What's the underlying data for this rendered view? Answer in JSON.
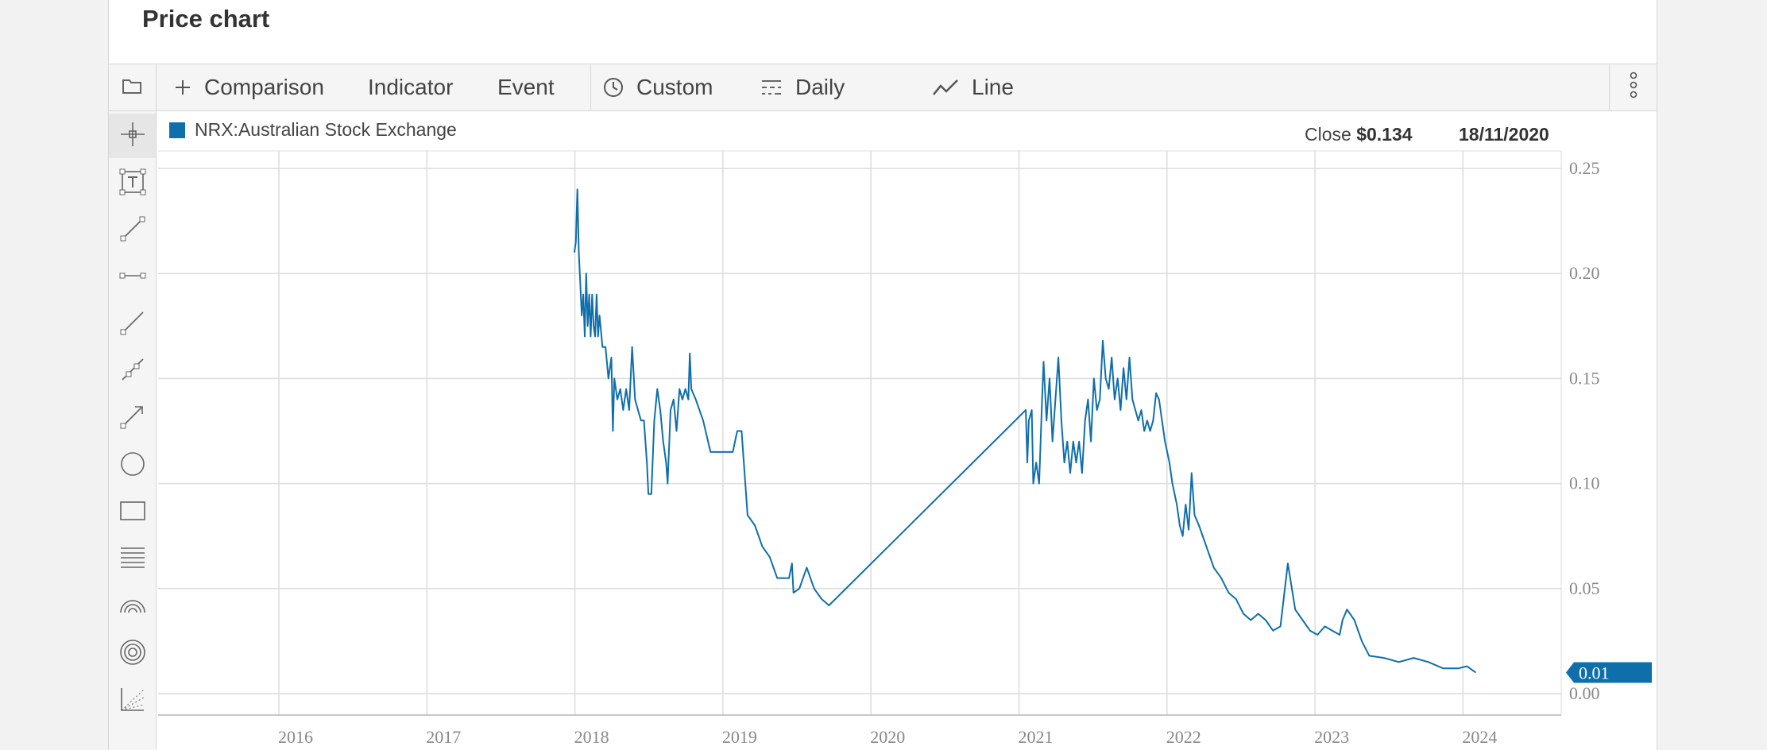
{
  "page": {
    "title": "Price chart"
  },
  "toolbar": {
    "comparison_label": "Comparison",
    "indicator_label": "Indicator",
    "event_label": "Event",
    "custom_label": "Custom",
    "daily_label": "Daily",
    "line_label": "Line"
  },
  "sidebar": {
    "tools": [
      "crosshair-icon",
      "text-box-icon",
      "line-segment-icon",
      "horizontal-segment-icon",
      "ray-icon",
      "channel-icon",
      "arrow-icon",
      "circle-icon",
      "rectangle-icon",
      "fibonacci-lines-icon",
      "fibonacci-arcs-icon",
      "fibonacci-circles-icon",
      "scatter-fan-icon"
    ]
  },
  "legend": {
    "series_name": "NRX:Australian Stock Exchange",
    "color": "#0f6fab"
  },
  "readout": {
    "close_label": "Close",
    "close_value": "$0.134",
    "date": "18/11/2020"
  },
  "chart_data": {
    "type": "line",
    "series": [
      {
        "name": "NRX:Australian Stock Exchange",
        "color": "#0f6fab",
        "points": [
          [
            2017.83,
            0.21
          ],
          [
            2017.84,
            0.215
          ],
          [
            2017.85,
            0.24
          ],
          [
            2017.86,
            0.21
          ],
          [
            2017.87,
            0.195
          ],
          [
            2017.88,
            0.18
          ],
          [
            2017.89,
            0.19
          ],
          [
            2017.9,
            0.17
          ],
          [
            2017.91,
            0.2
          ],
          [
            2017.92,
            0.175
          ],
          [
            2017.93,
            0.19
          ],
          [
            2017.94,
            0.17
          ],
          [
            2017.95,
            0.19
          ],
          [
            2017.96,
            0.175
          ],
          [
            2017.97,
            0.17
          ],
          [
            2017.98,
            0.19
          ],
          [
            2017.99,
            0.17
          ],
          [
            2018.0,
            0.18
          ],
          [
            2018.02,
            0.165
          ],
          [
            2018.04,
            0.165
          ],
          [
            2018.06,
            0.15
          ],
          [
            2018.08,
            0.16
          ],
          [
            2018.09,
            0.125
          ],
          [
            2018.1,
            0.15
          ],
          [
            2018.12,
            0.14
          ],
          [
            2018.14,
            0.145
          ],
          [
            2018.16,
            0.135
          ],
          [
            2018.18,
            0.145
          ],
          [
            2018.2,
            0.135
          ],
          [
            2018.22,
            0.165
          ],
          [
            2018.24,
            0.14
          ],
          [
            2018.26,
            0.135
          ],
          [
            2018.28,
            0.13
          ],
          [
            2018.3,
            0.13
          ],
          [
            2018.32,
            0.11
          ],
          [
            2018.33,
            0.095
          ],
          [
            2018.35,
            0.095
          ],
          [
            2018.37,
            0.13
          ],
          [
            2018.39,
            0.145
          ],
          [
            2018.41,
            0.135
          ],
          [
            2018.43,
            0.12
          ],
          [
            2018.45,
            0.11
          ],
          [
            2018.46,
            0.1
          ],
          [
            2018.48,
            0.135
          ],
          [
            2018.5,
            0.14
          ],
          [
            2018.52,
            0.125
          ],
          [
            2018.54,
            0.145
          ],
          [
            2018.56,
            0.14
          ],
          [
            2018.58,
            0.145
          ],
          [
            2018.6,
            0.14
          ],
          [
            2018.61,
            0.162
          ],
          [
            2018.62,
            0.145
          ],
          [
            2018.65,
            0.14
          ],
          [
            2018.7,
            0.13
          ],
          [
            2018.75,
            0.115
          ],
          [
            2018.85,
            0.115
          ],
          [
            2018.9,
            0.115
          ],
          [
            2018.93,
            0.125
          ],
          [
            2018.96,
            0.125
          ],
          [
            2019.0,
            0.085
          ],
          [
            2019.05,
            0.08
          ],
          [
            2019.1,
            0.07
          ],
          [
            2019.15,
            0.065
          ],
          [
            2019.2,
            0.055
          ],
          [
            2019.28,
            0.055
          ],
          [
            2019.3,
            0.062
          ],
          [
            2019.31,
            0.048
          ],
          [
            2019.35,
            0.05
          ],
          [
            2019.4,
            0.06
          ],
          [
            2019.45,
            0.05
          ],
          [
            2019.5,
            0.045
          ],
          [
            2019.55,
            0.042
          ],
          [
            2020.88,
            0.135
          ],
          [
            2020.89,
            0.11
          ],
          [
            2020.9,
            0.13
          ],
          [
            2020.92,
            0.135
          ],
          [
            2020.93,
            0.1
          ],
          [
            2020.95,
            0.11
          ],
          [
            2020.97,
            0.1
          ],
          [
            2020.99,
            0.14
          ],
          [
            2021.0,
            0.158
          ],
          [
            2021.02,
            0.13
          ],
          [
            2021.04,
            0.15
          ],
          [
            2021.06,
            0.12
          ],
          [
            2021.08,
            0.14
          ],
          [
            2021.1,
            0.16
          ],
          [
            2021.12,
            0.13
          ],
          [
            2021.14,
            0.11
          ],
          [
            2021.16,
            0.12
          ],
          [
            2021.18,
            0.105
          ],
          [
            2021.2,
            0.12
          ],
          [
            2021.22,
            0.11
          ],
          [
            2021.24,
            0.12
          ],
          [
            2021.26,
            0.105
          ],
          [
            2021.28,
            0.13
          ],
          [
            2021.3,
            0.14
          ],
          [
            2021.32,
            0.12
          ],
          [
            2021.34,
            0.15
          ],
          [
            2021.36,
            0.135
          ],
          [
            2021.38,
            0.14
          ],
          [
            2021.4,
            0.168
          ],
          [
            2021.42,
            0.15
          ],
          [
            2021.44,
            0.145
          ],
          [
            2021.46,
            0.16
          ],
          [
            2021.48,
            0.14
          ],
          [
            2021.5,
            0.15
          ],
          [
            2021.52,
            0.135
          ],
          [
            2021.54,
            0.155
          ],
          [
            2021.56,
            0.14
          ],
          [
            2021.58,
            0.16
          ],
          [
            2021.6,
            0.14
          ],
          [
            2021.62,
            0.135
          ],
          [
            2021.64,
            0.13
          ],
          [
            2021.66,
            0.135
          ],
          [
            2021.68,
            0.125
          ],
          [
            2021.7,
            0.13
          ],
          [
            2021.72,
            0.125
          ],
          [
            2021.74,
            0.13
          ],
          [
            2021.76,
            0.143
          ],
          [
            2021.78,
            0.14
          ],
          [
            2021.8,
            0.13
          ],
          [
            2021.82,
            0.12
          ],
          [
            2021.85,
            0.11
          ],
          [
            2021.87,
            0.1
          ],
          [
            2021.9,
            0.09
          ],
          [
            2021.92,
            0.08
          ],
          [
            2021.94,
            0.075
          ],
          [
            2021.96,
            0.09
          ],
          [
            2021.98,
            0.078
          ],
          [
            2022.0,
            0.105
          ],
          [
            2022.02,
            0.085
          ],
          [
            2022.05,
            0.08
          ],
          [
            2022.1,
            0.07
          ],
          [
            2022.15,
            0.06
          ],
          [
            2022.2,
            0.055
          ],
          [
            2022.25,
            0.048
          ],
          [
            2022.3,
            0.045
          ],
          [
            2022.35,
            0.038
          ],
          [
            2022.4,
            0.035
          ],
          [
            2022.45,
            0.038
          ],
          [
            2022.5,
            0.035
          ],
          [
            2022.55,
            0.03
          ],
          [
            2022.6,
            0.032
          ],
          [
            2022.65,
            0.062
          ],
          [
            2022.7,
            0.04
          ],
          [
            2022.75,
            0.035
          ],
          [
            2022.8,
            0.03
          ],
          [
            2022.85,
            0.028
          ],
          [
            2022.9,
            0.032
          ],
          [
            2022.95,
            0.03
          ],
          [
            2023.0,
            0.028
          ],
          [
            2023.02,
            0.035
          ],
          [
            2023.05,
            0.04
          ],
          [
            2023.1,
            0.035
          ],
          [
            2023.15,
            0.025
          ],
          [
            2023.2,
            0.018
          ],
          [
            2023.3,
            0.017
          ],
          [
            2023.4,
            0.015
          ],
          [
            2023.5,
            0.017
          ],
          [
            2023.6,
            0.015
          ],
          [
            2023.7,
            0.012
          ],
          [
            2023.8,
            0.012
          ],
          [
            2023.86,
            0.013
          ],
          [
            2023.92,
            0.01
          ]
        ]
      }
    ],
    "x_tick_labels": [
      "2016",
      "2017",
      "2018",
      "2019",
      "2020",
      "2021",
      "2022",
      "2023",
      "2024"
    ],
    "y_tick_labels": [
      "0.00",
      "0.05",
      "0.10",
      "0.15",
      "0.20",
      "0.25"
    ],
    "xlim": [
      2015,
      2024.5
    ],
    "ylim": [
      -0.01,
      0.26
    ],
    "last_value_label": "0.01",
    "grid": true,
    "legend_position": "top-left"
  }
}
